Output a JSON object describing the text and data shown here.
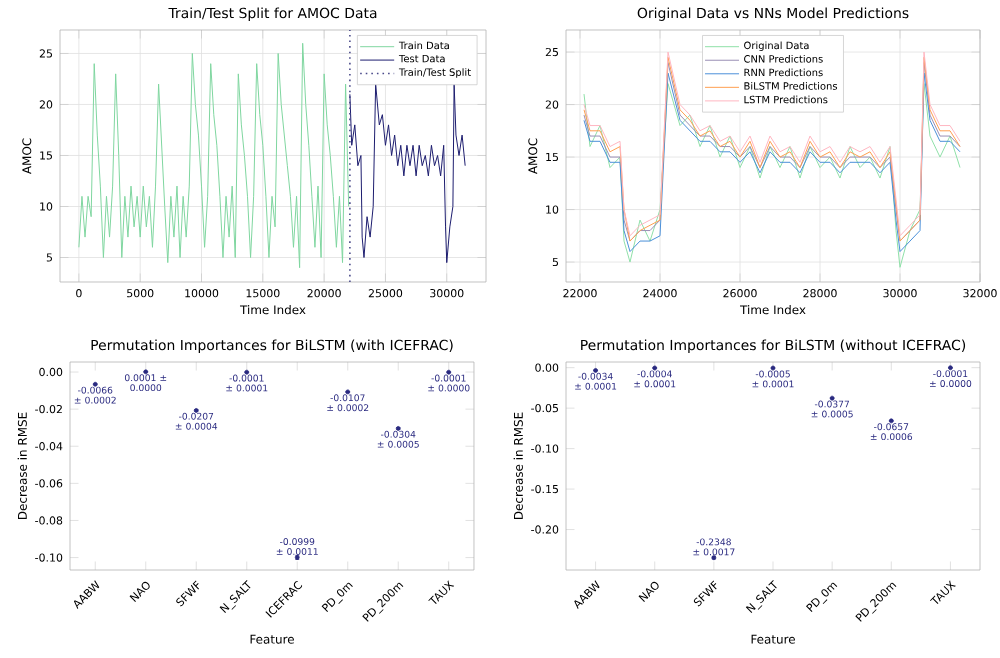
{
  "chart_data": [
    {
      "type": "line",
      "title": "Train/Test Split for AMOC Data",
      "xlabel": "Time Index",
      "ylabel": "AMOC",
      "xlim": [
        -1540,
        33200
      ],
      "ylim": [
        2.6,
        27.3
      ],
      "xticks": [
        0,
        5000,
        10000,
        15000,
        20000,
        25000,
        30000
      ],
      "yticks": [
        5,
        10,
        15,
        20,
        25
      ],
      "grid": true,
      "legend": "top right",
      "ref_lines": [
        {
          "axis": "x",
          "value": 22100,
          "label": "Train/Test Split",
          "color": "#4a4a8a",
          "line_style": "dotted"
        }
      ],
      "series": [
        {
          "name": "Train Data",
          "color": "#7fd6a0",
          "x": [
            0,
            250,
            500,
            750,
            1000,
            1250,
            1500,
            1750,
            2000,
            2250,
            2500,
            2750,
            3000,
            3250,
            3500,
            3750,
            4000,
            4250,
            4500,
            4750,
            5000,
            5250,
            5500,
            5750,
            6000,
            6250,
            6500,
            6750,
            7000,
            7250,
            7500,
            7750,
            8000,
            8250,
            8500,
            8750,
            9000,
            9250,
            9500,
            9750,
            10000,
            10250,
            10500,
            10750,
            11000,
            11250,
            11500,
            11750,
            12000,
            12250,
            12500,
            12750,
            13000,
            13250,
            13500,
            13750,
            14000,
            14250,
            14500,
            14750,
            15000,
            15250,
            15500,
            15750,
            16000,
            16250,
            16500,
            16750,
            17000,
            17250,
            17500,
            17750,
            18000,
            18250,
            18500,
            18750,
            19000,
            19250,
            19500,
            19750,
            20000,
            20250,
            20500,
            20750,
            21000,
            21250,
            21500,
            21750,
            22000
          ],
          "values": [
            6,
            11,
            7,
            11,
            9,
            24,
            17,
            12,
            5,
            11,
            7,
            12,
            23,
            15,
            5,
            11,
            7,
            12,
            8,
            11,
            7,
            12,
            8,
            11,
            6,
            12,
            22,
            16,
            10,
            4.5,
            11,
            7,
            12,
            5,
            11,
            7,
            12,
            25,
            20,
            17,
            12,
            6,
            11,
            24,
            19,
            16,
            11,
            5,
            11,
            7,
            12,
            5,
            23,
            18,
            15,
            11,
            5,
            11,
            24,
            19,
            16,
            11,
            5,
            11,
            8,
            25,
            20,
            17,
            14,
            11,
            6,
            11,
            4,
            26,
            20,
            16,
            11,
            6,
            12,
            5,
            23,
            18,
            15,
            11,
            6,
            11,
            4.5,
            22,
            10
          ]
        },
        {
          "name": "Test Data",
          "color": "#1c1c6e",
          "x": [
            22100,
            22250,
            22500,
            22750,
            23000,
            23100,
            23250,
            23500,
            23750,
            24000,
            24200,
            24500,
            24750,
            25000,
            25250,
            25500,
            25750,
            26000,
            26250,
            26500,
            26750,
            27000,
            27250,
            27500,
            27750,
            28000,
            28250,
            28500,
            28750,
            29000,
            29250,
            29500,
            29750,
            29900,
            30000,
            30250,
            30500,
            30600,
            30750,
            31000,
            31250,
            31500
          ],
          "values": [
            21,
            16,
            18,
            14,
            15,
            7,
            5,
            9,
            7,
            10,
            22,
            18,
            19,
            16,
            18,
            15,
            17,
            14,
            16,
            13,
            16,
            14,
            16,
            13,
            16,
            14,
            15,
            13,
            16,
            14,
            15,
            13,
            16,
            8,
            4.5,
            8,
            10,
            22,
            17,
            15,
            17,
            14
          ]
        }
      ]
    },
    {
      "type": "line",
      "title": "Original Data vs NNs Model Predictions",
      "xlabel": "Time Index",
      "ylabel": "AMOC",
      "xlim": [
        21650,
        32000
      ],
      "ylim": [
        3.1,
        27.1
      ],
      "xticks": [
        22000,
        24000,
        26000,
        28000,
        30000,
        32000
      ],
      "yticks": [
        5,
        10,
        15,
        20,
        25
      ],
      "grid": true,
      "legend": "top",
      "x": [
        22100,
        22250,
        22500,
        22750,
        23000,
        23100,
        23250,
        23500,
        23750,
        24000,
        24200,
        24500,
        24750,
        25000,
        25250,
        25500,
        25750,
        26000,
        26250,
        26500,
        26750,
        27000,
        27250,
        27500,
        27750,
        28000,
        28250,
        28500,
        28750,
        29000,
        29250,
        29500,
        29750,
        29900,
        30000,
        30250,
        30500,
        30600,
        30750,
        31000,
        31250,
        31500
      ],
      "series": [
        {
          "name": "Original Data",
          "color": "#8fe0a8",
          "values": [
            21,
            16,
            18,
            14,
            15,
            7,
            5,
            9,
            7,
            10,
            22,
            18,
            19,
            16,
            18,
            15,
            17,
            14,
            16,
            13,
            16,
            14,
            16,
            13,
            16,
            14,
            15,
            13,
            16,
            14,
            15,
            13,
            16,
            8,
            4.5,
            8,
            10,
            22,
            17,
            15,
            17,
            14
          ]
        },
        {
          "name": "CNN Predictions",
          "color": "#9a8fb5",
          "values": [
            19,
            17,
            17,
            15,
            15,
            9,
            7,
            8,
            8,
            9,
            24,
            19,
            18,
            17,
            17,
            16,
            16,
            15,
            16,
            14,
            16,
            15,
            15,
            14,
            16,
            15,
            15,
            14,
            15,
            15,
            15,
            14,
            15,
            10,
            7,
            8,
            9,
            24,
            19,
            17,
            17,
            16
          ]
        },
        {
          "name": "RNN Predictions",
          "color": "#4a90d9",
          "values": [
            18.5,
            16.5,
            16.5,
            14.5,
            14.5,
            8,
            6,
            7,
            7,
            7.5,
            23,
            18.5,
            17.5,
            16.5,
            16.5,
            15.5,
            15.5,
            14.5,
            15.5,
            13.5,
            15.5,
            14.5,
            14.5,
            13.5,
            15.5,
            14.5,
            14.5,
            13.5,
            14.5,
            14.5,
            14.5,
            13.5,
            14.5,
            9,
            6,
            7,
            8,
            23,
            18.5,
            16.5,
            16.5,
            15.5
          ]
        },
        {
          "name": "BiLSTM Predictions",
          "color": "#ff9f50",
          "values": [
            19.5,
            17.5,
            17.5,
            15.5,
            16,
            10,
            7,
            8,
            8.5,
            9,
            24.5,
            19.5,
            18.5,
            17,
            17.5,
            16,
            16.5,
            15,
            16.5,
            14,
            16.5,
            15,
            15.5,
            14,
            16.5,
            15,
            15.5,
            14,
            15.5,
            15,
            15.5,
            14,
            15.5,
            10.5,
            7,
            8,
            9,
            24.5,
            19.5,
            17.5,
            17.5,
            16
          ]
        },
        {
          "name": "LSTM Predictions",
          "color": "#ffb6c1",
          "values": [
            20,
            18,
            18,
            16,
            16.5,
            10,
            7.5,
            8.5,
            9,
            9.5,
            25,
            20,
            19,
            17.5,
            18,
            16.5,
            17,
            15.5,
            17,
            14.5,
            17,
            15.5,
            16,
            14.5,
            17,
            15.5,
            16,
            14.5,
            16,
            15.5,
            16,
            14.5,
            16,
            11,
            7.5,
            8.5,
            9.5,
            25,
            20,
            18,
            18,
            16.5
          ]
        }
      ]
    },
    {
      "type": "scatter",
      "title": "Permutation Importances for BiLSTM (with ICEFRAC)",
      "xlabel": "Feature",
      "ylabel": "Decrease in RMSE",
      "ylim": [
        -0.1067,
        0.0054
      ],
      "yticks": [
        {
          "value": 0,
          "label": "0.00"
        },
        {
          "value": -0.02,
          "label": "-0.02"
        },
        {
          "value": -0.04,
          "label": "-0.04"
        },
        {
          "value": -0.06,
          "label": "-0.06"
        },
        {
          "value": -0.08,
          "label": "-0.08"
        },
        {
          "value": -0.1,
          "label": "-0.10"
        }
      ],
      "categories": [
        "AABW",
        "NAO",
        "SFWF",
        "N_SALT",
        "ICEFRAC",
        "PD_0m",
        "PD_200m",
        "TAUX"
      ],
      "series": [
        {
          "color": "#2a2a80",
          "values": [
            -0.0066,
            0.0001,
            -0.0207,
            -0.0001,
            -0.0999,
            -0.0107,
            -0.0304,
            -0.0001
          ],
          "errors": [
            0.0002,
            0,
            0.0004,
            0.0001,
            0.0011,
            0.0002,
            0.0005,
            0
          ],
          "value_labels": [
            "-0.0066 ± 0.0002",
            "0.0001 ± 0.0000",
            "-0.0207 ± 0.0004",
            "-0.0001 ± 0.0001",
            "-0.0999 ± 0.0011",
            "-0.0107 ± 0.0002",
            "-0.0304 ± 0.0005",
            "-0.0001 ± 0.0000"
          ]
        }
      ]
    },
    {
      "type": "scatter",
      "title": "Permutation Importances for BiLSTM (without ICEFRAC)",
      "xlabel": "Feature",
      "ylabel": "Decrease in RMSE",
      "ylim": [
        -0.25,
        0.007
      ],
      "yticks": [
        {
          "value": 0,
          "label": "0.00"
        },
        {
          "value": -0.05,
          "label": "-0.05"
        },
        {
          "value": -0.1,
          "label": "-0.10"
        },
        {
          "value": -0.15,
          "label": "-0.15"
        },
        {
          "value": -0.2,
          "label": "-0.20"
        }
      ],
      "categories": [
        "AABW",
        "NAO",
        "SFWF",
        "N_SALT",
        "PD_0m",
        "PD_200m",
        "TAUX"
      ],
      "series": [
        {
          "color": "#2a2a80",
          "values": [
            -0.0034,
            -0.0004,
            -0.2348,
            -0.0005,
            -0.0377,
            -0.0657,
            -0.0001
          ],
          "errors": [
            0.0001,
            0.0001,
            0.0017,
            0.0001,
            0.0005,
            0.0006,
            0
          ],
          "value_labels": [
            "-0.0034 ± 0.0001",
            "-0.0004 ± 0.0001",
            "-0.2348 ± 0.0017",
            "-0.0005 ± 0.0001",
            "-0.0377 ± 0.0005",
            "-0.0657 ± 0.0006",
            "-0.0001 ± 0.0000"
          ]
        }
      ]
    }
  ]
}
